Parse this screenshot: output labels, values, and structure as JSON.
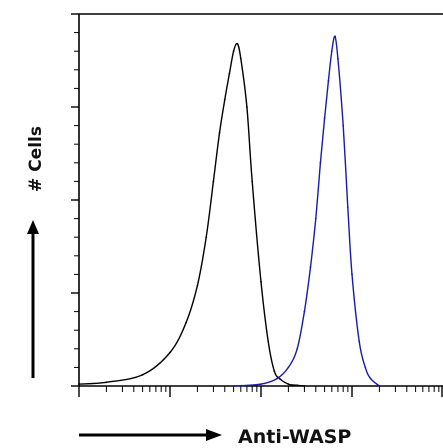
{
  "chart_data": {
    "type": "line",
    "title": "",
    "xlabel": "Anti-WASP",
    "ylabel": "# Cells",
    "x_scale": "log",
    "xlim": [
      1,
      10000
    ],
    "ylim": [
      0,
      100
    ],
    "grid": false,
    "legend": "none",
    "series": [
      {
        "color": "#000000",
        "x": [
          1,
          2,
          5,
          10,
          15,
          20,
          25,
          30,
          35,
          40,
          45,
          50,
          55,
          60,
          70,
          80,
          100,
          120,
          140,
          160,
          200,
          250,
          300
        ],
        "y": [
          0.5,
          1,
          3,
          9,
          17,
          27,
          40,
          55,
          68,
          77,
          84,
          90,
          92,
          88,
          75,
          55,
          28,
          12,
          4,
          2,
          0.5,
          0.2,
          0
        ]
      },
      {
        "color": "#1a1aaa",
        "x": [
          50,
          100,
          150,
          200,
          250,
          300,
          350,
          400,
          450,
          500,
          550,
          600,
          650,
          700,
          800,
          900,
          1000,
          1200,
          1400,
          1600,
          2000
        ],
        "y": [
          0,
          0.5,
          2,
          5,
          10,
          20,
          32,
          45,
          60,
          72,
          82,
          90,
          94,
          88,
          70,
          48,
          30,
          12,
          5,
          2,
          0
        ]
      }
    ]
  }
}
